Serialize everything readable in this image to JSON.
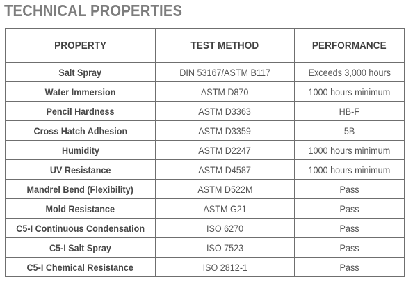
{
  "title": "TECHNICAL PROPERTIES",
  "table": {
    "headers": [
      "PROPERTY",
      "TEST METHOD",
      "PERFORMANCE"
    ],
    "rows": [
      {
        "property": "Salt Spray",
        "test_method": "DIN 53167/ASTM B117",
        "performance": "Exceeds 3,000 hours"
      },
      {
        "property": "Water Immersion",
        "test_method": "ASTM D870",
        "performance": "1000 hours minimum"
      },
      {
        "property": "Pencil Hardness",
        "test_method": "ASTM D3363",
        "performance": "HB-F"
      },
      {
        "property": "Cross Hatch Adhesion",
        "test_method": "ASTM D3359",
        "performance": "5B"
      },
      {
        "property": "Humidity",
        "test_method": "ASTM D2247",
        "performance": "1000 hours minimum"
      },
      {
        "property": "UV Resistance",
        "test_method": "ASTM D4587",
        "performance": "1000 hours minimum"
      },
      {
        "property": "Mandrel Bend (Flexibility)",
        "test_method": "ASTM D522M",
        "performance": "Pass"
      },
      {
        "property": "Mold Resistance",
        "test_method": "ASTM G21",
        "performance": "Pass"
      },
      {
        "property": "C5-I Continuous Condensation",
        "test_method": "ISO 6270",
        "performance": "Pass"
      },
      {
        "property": "C5-I Salt Spray",
        "test_method": "ISO 7523",
        "performance": "Pass"
      },
      {
        "property": "C5-I Chemical Resistance",
        "test_method": "ISO 2812-1",
        "performance": "Pass"
      }
    ]
  }
}
